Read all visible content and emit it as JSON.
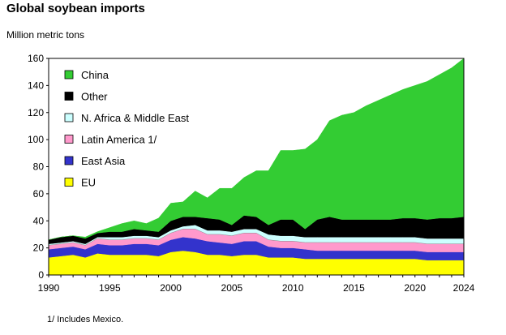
{
  "title": "Global soybean imports",
  "footnote": "1/ Includes Mexico.",
  "chart_data": {
    "type": "area",
    "stacked": true,
    "title": "Global soybean imports",
    "ylabel": "Million metric tons",
    "xlabel": "",
    "xlim": [
      1990,
      2024
    ],
    "ylim": [
      0,
      160
    ],
    "x_ticks": [
      1990,
      1995,
      2000,
      2005,
      2010,
      2015,
      2020,
      2024
    ],
    "y_ticks": [
      0,
      20,
      40,
      60,
      80,
      100,
      120,
      140,
      160
    ],
    "legend_position": "top-left",
    "x": [
      1990,
      1991,
      1992,
      1993,
      1994,
      1995,
      1996,
      1997,
      1998,
      1999,
      2000,
      2001,
      2002,
      2003,
      2004,
      2005,
      2006,
      2007,
      2008,
      2009,
      2010,
      2011,
      2012,
      2013,
      2014,
      2015,
      2016,
      2017,
      2018,
      2019,
      2020,
      2021,
      2022,
      2023,
      2024
    ],
    "series": [
      {
        "name": "EU",
        "color": "#ffff00",
        "values": [
          13,
          14,
          15,
          13,
          16,
          15,
          15,
          15,
          15,
          14,
          17,
          18,
          17,
          15,
          15,
          14,
          15,
          15,
          13,
          13,
          13,
          12,
          12,
          12,
          12,
          12,
          12,
          12,
          12,
          12,
          12,
          11,
          11,
          11,
          11
        ]
      },
      {
        "name": "East Asia",
        "color": "#3333cc",
        "values": [
          6,
          6,
          6,
          6,
          7,
          7,
          7,
          8,
          8,
          8,
          9,
          10,
          10,
          10,
          9,
          9,
          10,
          10,
          8,
          7,
          7,
          7,
          6,
          6,
          6,
          6,
          6,
          6,
          6,
          6,
          6,
          6,
          6,
          6,
          6
        ]
      },
      {
        "name": "Latin America 1/",
        "color": "#ff99cc",
        "values": [
          3,
          3,
          3,
          3,
          4,
          4,
          4,
          4,
          4,
          4,
          5,
          6,
          7,
          5,
          6,
          6,
          6,
          6,
          5,
          5,
          5,
          5,
          6,
          6,
          6,
          6,
          6,
          6,
          6,
          6,
          6,
          6,
          6,
          6,
          6
        ]
      },
      {
        "name": "N. Africa & Middle East",
        "color": "#ccffff",
        "values": [
          1,
          1,
          1,
          1,
          1,
          2,
          2,
          2,
          2,
          2,
          2,
          2,
          3,
          3,
          3,
          3,
          3,
          3,
          4,
          4,
          4,
          4,
          4,
          4,
          4,
          4,
          4,
          4,
          4,
          4,
          4,
          4,
          4,
          4,
          4
        ]
      },
      {
        "name": "Other",
        "color": "#000000",
        "values": [
          3,
          4,
          4,
          4,
          3,
          4,
          4,
          5,
          4,
          4,
          7,
          7,
          6,
          9,
          8,
          5,
          10,
          9,
          7,
          12,
          12,
          6,
          13,
          15,
          13,
          13,
          13,
          13,
          13,
          14,
          14,
          14,
          15,
          15,
          16
        ]
      },
      {
        "name": "China",
        "color": "#33cc33",
        "values": [
          0,
          0,
          0,
          1,
          1,
          3,
          6,
          6,
          5,
          10,
          13,
          11,
          19,
          15,
          23,
          27,
          28,
          34,
          40,
          51,
          51,
          59,
          59,
          71,
          77,
          79,
          84,
          88,
          92,
          95,
          98,
          102,
          106,
          111,
          117
        ]
      }
    ]
  }
}
